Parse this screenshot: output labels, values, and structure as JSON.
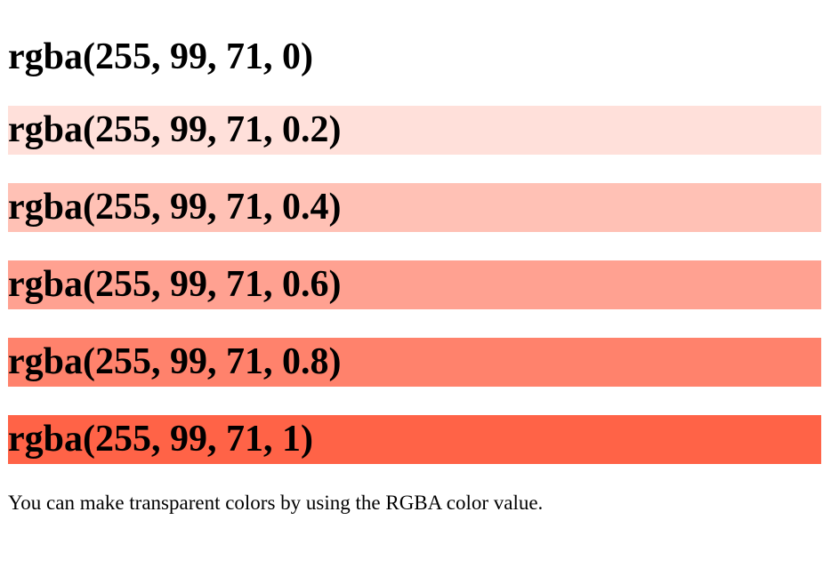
{
  "headings": [
    {
      "label": "rgba(255, 99, 71, 0)",
      "background": "rgba(255, 99, 71, 0)"
    },
    {
      "label": "rgba(255, 99, 71, 0.2)",
      "background": "rgba(255, 99, 71, 0.2)"
    },
    {
      "label": "rgba(255, 99, 71, 0.4)",
      "background": "rgba(255, 99, 71, 0.4)"
    },
    {
      "label": "rgba(255, 99, 71, 0.6)",
      "background": "rgba(255, 99, 71, 0.6)"
    },
    {
      "label": "rgba(255, 99, 71, 0.8)",
      "background": "rgba(255, 99, 71, 0.8)"
    },
    {
      "label": "rgba(255, 99, 71, 1)",
      "background": "rgba(255, 99, 71, 1)"
    }
  ],
  "note": "You can make transparent colors by using the RGBA color value."
}
